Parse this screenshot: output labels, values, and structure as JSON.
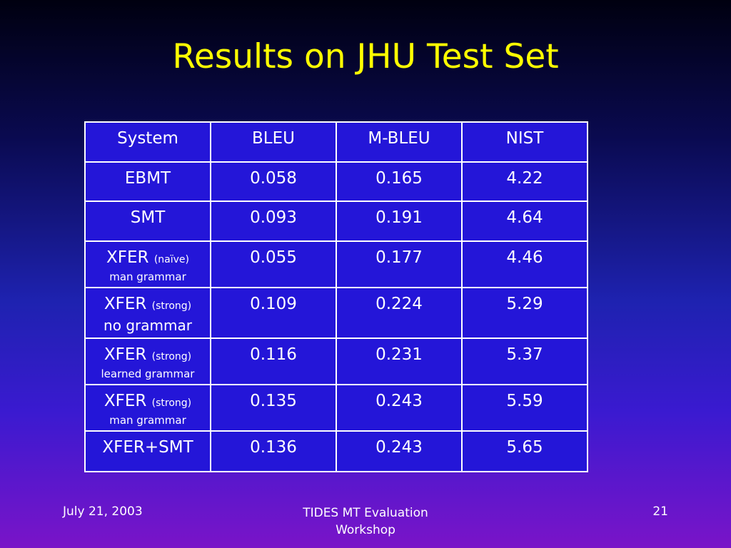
{
  "header": {
    "title": "Results on JHU Test Set"
  },
  "table": {
    "columns": [
      "System",
      "BLEU",
      "M-BLEU",
      "NIST"
    ],
    "rows": [
      {
        "system": {
          "name": "EBMT"
        },
        "values": [
          "0.058",
          "0.165",
          "4.22"
        ]
      },
      {
        "system": {
          "name": "SMT"
        },
        "values": [
          "0.093",
          "0.191",
          "4.64"
        ]
      },
      {
        "system": {
          "name": "XFER",
          "variant": "(naïve)",
          "note": "man grammar"
        },
        "values": [
          "0.055",
          "0.177",
          "4.46"
        ]
      },
      {
        "system": {
          "name": "XFER",
          "variant": "(strong)",
          "note": "no grammar",
          "note_large": true
        },
        "values": [
          "0.109",
          "0.224",
          "5.29"
        ]
      },
      {
        "system": {
          "name": "XFER",
          "variant": "(strong)",
          "note": "learned grammar"
        },
        "values": [
          "0.116",
          "0.231",
          "5.37"
        ]
      },
      {
        "system": {
          "name": "XFER",
          "variant": "(strong)",
          "note": "man grammar"
        },
        "values": [
          "0.135",
          "0.243",
          "5.59"
        ]
      },
      {
        "system": {
          "name": "XFER+SMT"
        },
        "values": [
          "0.136",
          "0.243",
          "5.65"
        ]
      }
    ]
  },
  "footer": {
    "date": "July 21, 2003",
    "event": "TIDES MT Evaluation Workshop",
    "page": "21"
  }
}
